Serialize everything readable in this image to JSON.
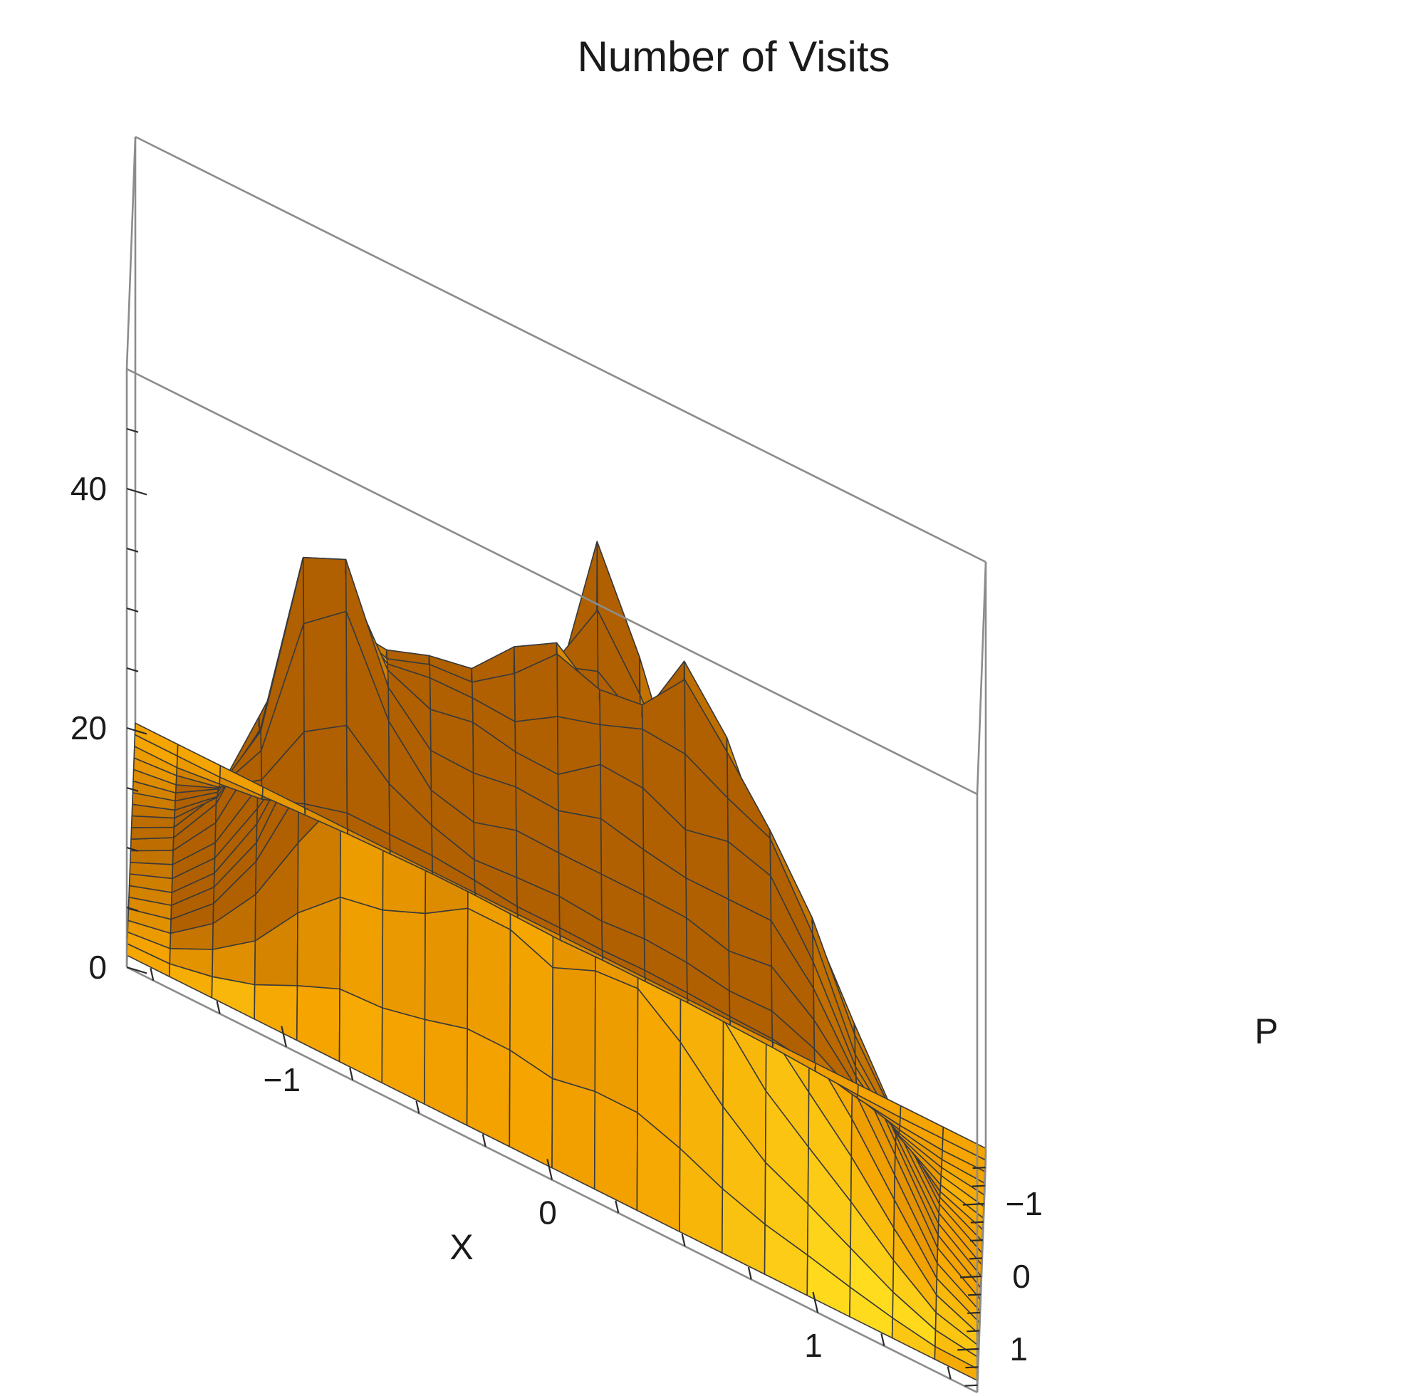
{
  "chart_data": {
    "type": "surface3d",
    "title": "Number of Visits",
    "xlabel": "X",
    "ylabel": "P",
    "zlabel": "",
    "xlim": [
      -1.6,
      1.6
    ],
    "ylim": [
      -1.6,
      1.6
    ],
    "zlim": [
      0,
      50
    ],
    "x_ticks": [
      "−1",
      "0",
      "1"
    ],
    "y_ticks": [
      "−1",
      "0",
      "1"
    ],
    "z_ticks": [
      "0",
      "20",
      "40"
    ],
    "x": [
      -1.6,
      -1.44,
      -1.28,
      -1.12,
      -0.96,
      -0.8,
      -0.64,
      -0.48,
      -0.32,
      -0.16,
      0.0,
      0.16,
      0.32,
      0.48,
      0.64,
      0.8,
      0.96,
      1.12,
      1.28,
      1.44,
      1.6
    ],
    "y": [
      -1.6,
      -1.44,
      -1.28,
      -1.12,
      -0.96,
      -0.8,
      -0.64,
      -0.48,
      -0.32,
      -0.16,
      0.0,
      0.16,
      0.32,
      0.48,
      0.64,
      0.8,
      0.96,
      1.12,
      1.28,
      1.44,
      1.6
    ],
    "z": [
      [
        1.0,
        1.0,
        1.0,
        1.0,
        1.0,
        1.0,
        1.0,
        1.0,
        1.0,
        1.0,
        1.0,
        1.0,
        1.0,
        1.0,
        1.0,
        1.0,
        1.0,
        1.0,
        1.0,
        1.0,
        1.0
      ],
      [
        1.0,
        1.0,
        1.0,
        1.2,
        1.4,
        1.6,
        1.7,
        1.8,
        1.8,
        1.7,
        1.6,
        1.7,
        1.7,
        1.7,
        1.6,
        1.5,
        1.3,
        1.1,
        1.0,
        1.0,
        1.0
      ],
      [
        1.0,
        1.0,
        1.4,
        1.9,
        3.3,
        4.3,
        4.3,
        4.3,
        4.0,
        3.6,
        3.6,
        3.5,
        3.6,
        3.5,
        3.3,
        3.2,
        2.6,
        1.8,
        1.3,
        1.0,
        1.0
      ],
      [
        1.0,
        1.3,
        2.1,
        4.5,
        10.3,
        12.6,
        9.5,
        7.8,
        6.7,
        7.0,
        7.2,
        6.9,
        7.2,
        7.0,
        6.4,
        6.5,
        5.1,
        2.9,
        1.9,
        1.2,
        1.0
      ],
      [
        1.0,
        1.5,
        3.0,
        7.9,
        20.3,
        23.1,
        15.7,
        11.7,
        10.8,
        11.9,
        11.8,
        11.8,
        11.8,
        11.7,
        10.7,
        11.2,
        8.5,
        4.6,
        2.6,
        1.5,
        1.0
      ],
      [
        1.0,
        1.8,
        3.9,
        10.5,
        26.8,
        28.4,
        19.5,
        16.0,
        15.9,
        16.5,
        16.3,
        17.4,
        16.6,
        16.0,
        16.0,
        16.0,
        12.1,
        6.5,
        3.4,
        1.8,
        1.0
      ],
      [
        1.0,
        2.1,
        4.6,
        11.6,
        27.7,
        28.2,
        21.9,
        20.4,
        21.1,
        20.4,
        20.3,
        22.9,
        22.7,
        21.0,
        21.8,
        20.7,
        15.3,
        8.3,
        4.3,
        2.0,
        1.0
      ],
      [
        1.0,
        2.3,
        5.2,
        12.0,
        25.6,
        26.4,
        23.4,
        24.0,
        24.1,
        23.9,
        26.1,
        27.2,
        28.6,
        28.3,
        26.4,
        24.8,
        18.6,
        10.3,
        5.6,
        2.4,
        1.0
      ],
      [
        1.0,
        2.6,
        6.1,
        13.5,
        24.0,
        26.1,
        24.8,
        26.1,
        26.4,
        28.9,
        32.3,
        31.1,
        31.6,
        35.5,
        31.2,
        26.5,
        20.9,
        12.9,
        7.3,
        2.9,
        1.0
      ],
      [
        1.0,
        2.8,
        7.3,
        15.6,
        24.0,
        26.9,
        26.5,
        27.8,
        28.5,
        32.1,
        34.2,
        31.3,
        31.6,
        38.0,
        33.4,
        25.2,
        21.5,
        14.8,
        8.5,
        3.3,
        1.0
      ],
      [
        1.0,
        2.9,
        7.5,
        15.8,
        23.1,
        26.7,
        26.9,
        27.5,
        27.6,
        30.0,
        32.4,
        30.3,
        31.2,
        35.2,
        32.1,
        24.5,
        20.8,
        15.1,
        8.9,
        3.5,
        1.0
      ],
      [
        1.0,
        2.8,
        6.9,
        14.4,
        20.8,
        25.0,
        26.0,
        28.3,
        28.1,
        29.6,
        33.3,
        33.1,
        32.1,
        32.6,
        31.1,
        25.7,
        20.8,
        15.4,
        9.2,
        3.6,
        1.0
      ],
      [
        1.0,
        2.6,
        6.2,
        12.6,
        18.7,
        23.6,
        26.6,
        28.6,
        28.9,
        29.6,
        35.2,
        36.5,
        33.9,
        31.0,
        29.3,
        27.3,
        21.0,
        15.8,
        9.6,
        3.6,
        1.0
      ],
      [
        1.0,
        2.4,
        5.9,
        11.8,
        18.5,
        23.3,
        27.8,
        28.0,
        29.0,
        29.8,
        36.5,
        42.6,
        37.3,
        30.7,
        28.0,
        28.0,
        20.7,
        15.4,
        9.5,
        3.5,
        1.0
      ],
      [
        1.0,
        2.2,
        5.6,
        11.5,
        19.8,
        24.2,
        27.3,
        29.1,
        30.2,
        29.2,
        34.7,
        49.3,
        41.4,
        31.3,
        26.7,
        26.3,
        19.3,
        14.4,
        8.8,
        3.2,
        1.0
      ],
      [
        1.0,
        2.1,
        5.4,
        10.9,
        19.9,
        26.3,
        25.7,
        31.0,
        31.5,
        29.1,
        30.3,
        39.0,
        37.4,
        31.3,
        25.1,
        22.1,
        17.0,
        12.7,
        7.7,
        2.9,
        1.0
      ],
      [
        1.0,
        1.9,
        5.0,
        10.3,
        17.9,
        24.9,
        24.5,
        28.2,
        32.1,
        30.2,
        29.6,
        31.0,
        32.5,
        29.1,
        22.4,
        17.8,
        14.1,
        10.5,
        6.3,
        2.5,
        1.0
      ],
      [
        1.0,
        1.7,
        4.3,
        8.5,
        14.6,
        20.1,
        21.0,
        22.9,
        26.5,
        26.2,
        24.1,
        25.8,
        27.2,
        23.5,
        17.6,
        13.4,
        10.5,
        7.7,
        4.6,
        2.0,
        1.0
      ],
      [
        1.0,
        1.4,
        3.1,
        5.6,
        9.7,
        12.8,
        13.5,
        15.0,
        17.2,
        17.2,
        15.8,
        17.3,
        17.6,
        14.9,
        11.3,
        8.4,
        6.7,
        4.8,
        2.9,
        1.5,
        1.0
      ],
      [
        1.0,
        1.1,
        1.8,
        2.9,
        4.6,
        6.1,
        6.3,
        7.1,
        8.1,
        8.1,
        7.5,
        8.2,
        8.2,
        7.0,
        5.4,
        4.2,
        3.4,
        2.5,
        1.7,
        1.1,
        1.0
      ],
      [
        1.0,
        1.0,
        1.0,
        1.0,
        1.0,
        1.0,
        1.0,
        1.0,
        1.0,
        1.0,
        1.0,
        1.0,
        1.0,
        1.0,
        1.0,
        1.0,
        1.0,
        1.0,
        1.0,
        1.0,
        1.0
      ]
    ],
    "colors": {
      "surface_base": "#f5a400",
      "surface_high": "#ffe020",
      "surface_shadow": "#b06000",
      "mesh_line": "#3a3a3a",
      "box_edge": "#8c8c8c"
    }
  }
}
